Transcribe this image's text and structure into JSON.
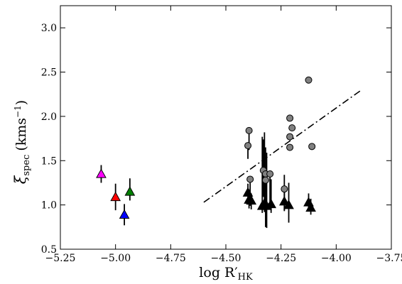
{
  "chart_data": {
    "type": "scatter",
    "xlabel": "log R′",
    "xlabel_sub": "HK",
    "ylabel": "ξ",
    "ylabel_sub": "spec",
    "ylabel_unit": "(kms",
    "ylabel_unit_sup": "−1",
    "ylabel_unit_close": ")",
    "xlim": [
      -5.25,
      -3.75
    ],
    "ylim": [
      0.5,
      3.25
    ],
    "x_ticks": [
      -5.25,
      -5.0,
      -4.75,
      -4.5,
      -4.25,
      -4.0,
      -3.75
    ],
    "x_tick_labels": [
      "−5.25",
      "−5.00",
      "−4.75",
      "−4.50",
      "−4.25",
      "−4.00",
      "−3.75"
    ],
    "y_ticks": [
      0.5,
      1.0,
      1.5,
      2.0,
      2.5,
      3.0
    ],
    "y_tick_labels": [
      "0.5",
      "1.0",
      "1.5",
      "2.0",
      "2.5",
      "3.0"
    ],
    "grid": false,
    "series": [
      {
        "marker": "circle",
        "color": "#808080",
        "points": [
          {
            "x": -4.395,
            "y": 1.84,
            "err_lo": 0.22,
            "err_hi": 0.0
          },
          {
            "x": -4.4,
            "y": 1.67,
            "err_lo": 0.15,
            "err_hi": 0.0
          },
          {
            "x": -4.39,
            "y": 1.29,
            "err_lo": 0.3,
            "err_hi": 0.0
          },
          {
            "x": -4.33,
            "y": 1.39,
            "err_lo": 0.3,
            "err_hi": 0.35
          },
          {
            "x": -4.32,
            "y": 1.35,
            "err_lo": 0.2,
            "err_hi": 0.3
          },
          {
            "x": -4.32,
            "y": 1.28,
            "err_lo": 0.53,
            "err_hi": 0.0
          },
          {
            "x": -4.3,
            "y": 1.35,
            "err_lo": 0.35,
            "err_hi": 0.0
          },
          {
            "x": -4.235,
            "y": 1.18,
            "err_lo": 0.25,
            "err_hi": 0.0
          },
          {
            "x": -4.21,
            "y": 1.98,
            "err_lo": 0.0,
            "err_hi": 0.0
          },
          {
            "x": -4.2,
            "y": 1.87,
            "err_lo": 0.0,
            "err_hi": 0.0
          },
          {
            "x": -4.21,
            "y": 1.77,
            "err_lo": 0.0,
            "err_hi": 0.0
          },
          {
            "x": -4.21,
            "y": 1.65,
            "err_lo": 0.0,
            "err_hi": 0.0
          },
          {
            "x": -4.125,
            "y": 2.41,
            "err_lo": 0.0,
            "err_hi": 0.0
          },
          {
            "x": -4.11,
            "y": 1.66,
            "err_lo": 0.0,
            "err_hi": 0.0
          }
        ]
      },
      {
        "marker": "triangle",
        "color": "#000000",
        "points": [
          {
            "x": -4.4,
            "y": 1.14,
            "err_lo": 0.08,
            "err_hi": 0.1
          },
          {
            "x": -4.395,
            "y": 1.06,
            "err_lo": 0.1,
            "err_hi": 0.08
          },
          {
            "x": -4.385,
            "y": 1.05,
            "err_lo": 0.1,
            "err_hi": 0.08
          },
          {
            "x": -4.335,
            "y": 0.99,
            "err_lo": 0.08,
            "err_hi": 0.78
          },
          {
            "x": -4.325,
            "y": 1.02,
            "err_lo": 0.1,
            "err_hi": 0.8
          },
          {
            "x": -4.315,
            "y": 0.99,
            "err_lo": 0.25,
            "err_hi": 0.6
          },
          {
            "x": -4.295,
            "y": 1.01,
            "err_lo": 0.1,
            "err_hi": 0.28
          },
          {
            "x": -4.235,
            "y": 1.04,
            "err_lo": 0.1,
            "err_hi": 0.3
          },
          {
            "x": -4.215,
            "y": 1.0,
            "err_lo": 0.2,
            "err_hi": 0.25
          },
          {
            "x": -4.125,
            "y": 1.03,
            "err_lo": 0.1,
            "err_hi": 0.1
          },
          {
            "x": -4.115,
            "y": 0.97,
            "err_lo": 0.08,
            "err_hi": 0.1
          }
        ]
      },
      {
        "marker": "triangle",
        "color": "#ff00ff",
        "points": [
          {
            "x": -5.065,
            "y": 1.35,
            "err_lo": 0.1,
            "err_hi": 0.1
          }
        ]
      },
      {
        "marker": "triangle",
        "color": "#ff0000",
        "points": [
          {
            "x": -5.0,
            "y": 1.09,
            "err_lo": 0.15,
            "err_hi": 0.15
          }
        ]
      },
      {
        "marker": "triangle",
        "color": "#008000",
        "points": [
          {
            "x": -4.935,
            "y": 1.15,
            "err_lo": 0.1,
            "err_hi": 0.15
          }
        ]
      },
      {
        "marker": "triangle",
        "color": "#0000ff",
        "points": [
          {
            "x": -4.96,
            "y": 0.89,
            "err_lo": 0.12,
            "err_hi": 0.12
          }
        ]
      }
    ],
    "fit_line": {
      "style": "dash-dot",
      "color": "#000000",
      "x": [
        -4.6,
        -3.89
      ],
      "y": [
        1.03,
        2.29
      ]
    }
  }
}
